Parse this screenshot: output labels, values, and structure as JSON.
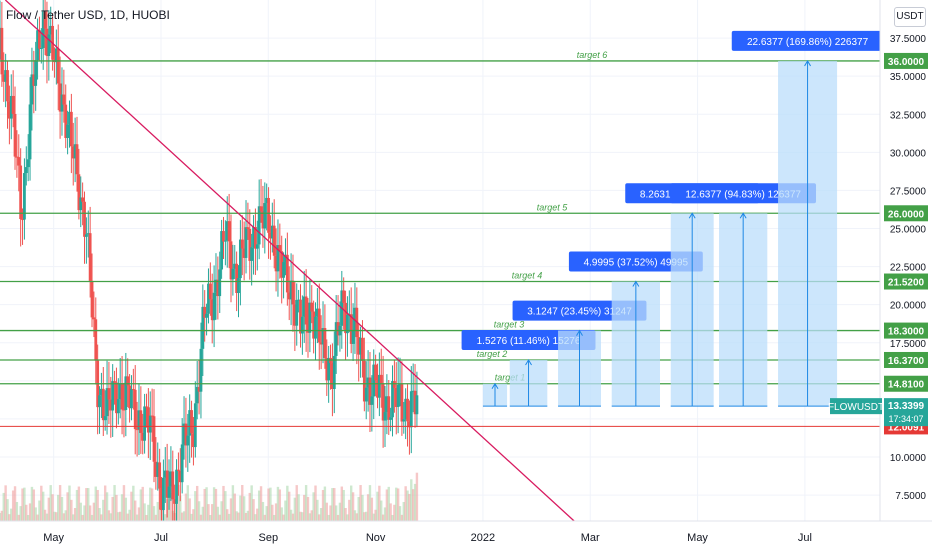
{
  "header": {
    "title": "Flow / Tether USD, 1D, HUOBI",
    "currency": "USDT"
  },
  "colors": {
    "up": "#26a69a",
    "down": "#ef5350",
    "level": "#43a047",
    "support": "#e53935",
    "trendline": "#d81b60",
    "projection_fill": "#bbdefb",
    "projection_line": "#1e88e5",
    "tag_blue": "#2962ff",
    "price_tag": "#26a69a"
  },
  "chart_data": {
    "type": "candlestick",
    "symbol": "FLOWUSDT",
    "x_tick_labels": [
      "May",
      "Jul",
      "Sep",
      "Nov",
      "2022",
      "Mar",
      "May",
      "Jul"
    ],
    "x_ticks_month_index": [
      4,
      6,
      8,
      10,
      12,
      14,
      16,
      18
    ],
    "y_tick_labels": [
      "7.5000",
      "10.0000",
      "12.5000",
      "15.0000",
      "17.5000",
      "20.0000",
      "22.5000",
      "25.0000",
      "27.5000",
      "30.0000",
      "32.5000",
      "35.0000",
      "37.5000"
    ],
    "y_ticks": [
      7.5,
      10,
      12.5,
      15,
      17.5,
      20,
      22.5,
      25,
      27.5,
      30,
      32.5,
      35,
      37.5
    ],
    "ylim": [
      5.8,
      40.0
    ],
    "xlim_month_index": [
      3.0,
      19.4
    ],
    "close_series_month_index": [
      3.0,
      3.2,
      3.4,
      3.6,
      3.8,
      4.0,
      4.2,
      4.4,
      4.6,
      4.8,
      5.0,
      5.2,
      5.4,
      5.6,
      5.8,
      6.0,
      6.2,
      6.4,
      6.6,
      6.8,
      7.0,
      7.2,
      7.4,
      7.6,
      7.8,
      8.0,
      8.2,
      8.4,
      8.6,
      8.8,
      9.0,
      9.2,
      9.4,
      9.6,
      9.8,
      10.0,
      10.2,
      10.4,
      10.6,
      10.8
    ],
    "close_series": [
      37.0,
      33.0,
      26.0,
      34.0,
      39.0,
      36.0,
      33.0,
      29.0,
      25.5,
      15.0,
      13.0,
      14.5,
      13.8,
      12.5,
      12.0,
      8.0,
      7.5,
      10.5,
      12.0,
      19.0,
      21.0,
      24.5,
      22.0,
      24.0,
      25.0,
      26.0,
      22.5,
      21.5,
      18.5,
      20.0,
      17.0,
      16.0,
      20.0,
      18.5,
      15.0,
      14.5,
      13.5,
      13.8,
      13.2,
      13.34
    ],
    "last_price": "13.3399",
    "countdown": "17:34:07",
    "levels": [
      {
        "value": 14.81,
        "label": "target 1",
        "tag": "14.8100"
      },
      {
        "value": 16.37,
        "label": "target 2",
        "tag": "16.3700"
      },
      {
        "value": 18.3,
        "label": "target 3",
        "tag": "18.3000"
      },
      {
        "value": 21.52,
        "label": "target 4",
        "tag": "21.5200"
      },
      {
        "value": 26.0,
        "label": "target 5",
        "tag": "26.0000"
      },
      {
        "value": 36.0,
        "label": "target 6",
        "tag": "36.0000"
      }
    ],
    "support": {
      "value": 12.0091,
      "tag": "12.0091"
    },
    "projections": [
      {
        "x0": 12.0,
        "x1": 12.45,
        "top": 14.81,
        "label": ""
      },
      {
        "x0": 12.5,
        "x1": 13.2,
        "top": 16.37,
        "label": "1.5276 (11.46%) 15276"
      },
      {
        "x0": 13.4,
        "x1": 14.2,
        "top": 18.3,
        "label": "3.1247 (23.45%) 31247"
      },
      {
        "x0": 14.4,
        "x1": 15.3,
        "top": 21.52,
        "label": "4.9995 (37.52%) 49995"
      },
      {
        "x0": 15.5,
        "x1": 16.3,
        "top": 26.0,
        "label": "8.2631 (62.00%) 82631"
      },
      {
        "x0": 16.4,
        "x1": 17.3,
        "top": 26.0,
        "label": "12.6377 (94.83%) 126377"
      },
      {
        "x0": 17.5,
        "x1": 18.6,
        "top": 36.0,
        "label": "22.6377 (169.86%) 226377"
      }
    ],
    "trendline": {
      "from": [
        3.1,
        40.0
      ],
      "to": [
        13.7,
        5.8
      ]
    }
  }
}
